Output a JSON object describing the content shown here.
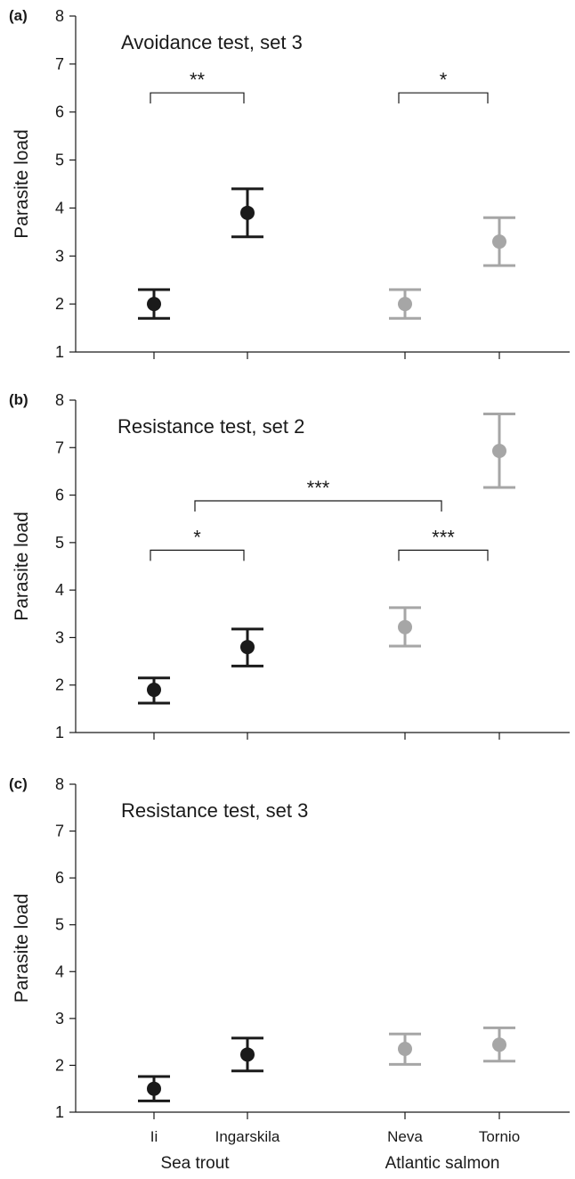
{
  "chart_data": [
    {
      "type": "scatter",
      "panel_label": "(a)",
      "title": "Avoidance test, set 3",
      "ylabel": "Parasite load",
      "ylim": [
        1,
        8
      ],
      "yticks": [
        "1",
        "2",
        "3",
        "4",
        "5",
        "6",
        "7",
        "8"
      ],
      "categories": [
        "Ii",
        "Ingarskila",
        "Neva",
        "Tornio"
      ],
      "points": [
        {
          "category": "Ii",
          "group": "Sea trout",
          "mean": 2.0,
          "lower": 1.7,
          "upper": 2.3
        },
        {
          "category": "Ingarskila",
          "group": "Sea trout",
          "mean": 3.9,
          "lower": 3.4,
          "upper": 4.4
        },
        {
          "category": "Neva",
          "group": "Atlantic salmon",
          "mean": 2.0,
          "lower": 1.7,
          "upper": 2.3
        },
        {
          "category": "Tornio",
          "group": "Atlantic salmon",
          "mean": 3.3,
          "lower": 2.8,
          "upper": 3.8
        }
      ],
      "significance": [
        {
          "from": "Ii",
          "to": "Ingarskila",
          "label": "**",
          "y": 6.4
        },
        {
          "from": "Neva",
          "to": "Tornio",
          "label": "*",
          "y": 6.4
        }
      ]
    },
    {
      "type": "scatter",
      "panel_label": "(b)",
      "title": "Resistance test, set 2",
      "ylabel": "Parasite load",
      "ylim": [
        1,
        8
      ],
      "yticks": [
        "1",
        "2",
        "3",
        "4",
        "5",
        "6",
        "7",
        "8"
      ],
      "categories": [
        "Ii",
        "Ingarskila",
        "Neva",
        "Tornio"
      ],
      "points": [
        {
          "category": "Ii",
          "group": "Sea trout",
          "mean": 1.9,
          "lower": 1.62,
          "upper": 2.15
        },
        {
          "category": "Ingarskila",
          "group": "Sea trout",
          "mean": 2.8,
          "lower": 2.4,
          "upper": 3.18
        },
        {
          "category": "Neva",
          "group": "Atlantic salmon",
          "mean": 3.22,
          "lower": 2.82,
          "upper": 3.63
        },
        {
          "category": "Tornio",
          "group": "Atlantic salmon",
          "mean": 6.93,
          "lower": 6.16,
          "upper": 7.71
        }
      ],
      "significance": [
        {
          "from": "Ii",
          "to": "Ingarskila",
          "label": "*",
          "y": 4.84
        },
        {
          "from": "Neva",
          "to": "Tornio",
          "label": "***",
          "y": 4.84
        },
        {
          "from": "Sea trout",
          "to": "Atlantic salmon",
          "label": "***",
          "y": 5.88
        }
      ]
    },
    {
      "type": "scatter",
      "panel_label": "(c)",
      "title": "Resistance test, set 3",
      "ylabel": "Parasite load",
      "ylim": [
        1,
        8
      ],
      "yticks": [
        "1",
        "2",
        "3",
        "4",
        "5",
        "6",
        "7",
        "8"
      ],
      "categories": [
        "Ii",
        "Ingarskila",
        "Neva",
        "Tornio"
      ],
      "points": [
        {
          "category": "Ii",
          "group": "Sea trout",
          "mean": 1.5,
          "lower": 1.24,
          "upper": 1.76
        },
        {
          "category": "Ingarskila",
          "group": "Sea trout",
          "mean": 2.23,
          "lower": 1.88,
          "upper": 2.58
        },
        {
          "category": "Neva",
          "group": "Atlantic salmon",
          "mean": 2.35,
          "lower": 2.02,
          "upper": 2.67
        },
        {
          "category": "Tornio",
          "group": "Atlantic salmon",
          "mean": 2.44,
          "lower": 2.09,
          "upper": 2.8
        }
      ],
      "significance": []
    }
  ],
  "x_labels": {
    "categories": [
      "Ii",
      "Ingarskila",
      "Neva",
      "Tornio"
    ],
    "groups": [
      "Sea trout",
      "Atlantic salmon"
    ]
  },
  "colors": {
    "Sea trout": "#1a1a1a",
    "Atlantic salmon": "#a6a6a6",
    "axis": "#1a1a1a"
  }
}
